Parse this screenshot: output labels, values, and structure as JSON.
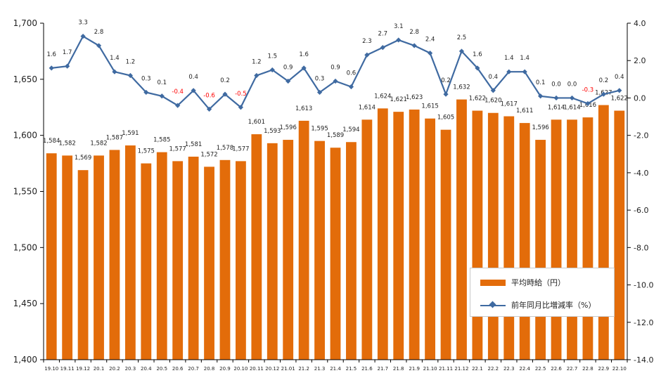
{
  "colors": {
    "bar": "#e36c0a",
    "line": "#3f6aa1",
    "negative_label": "#ff0000",
    "grid": "#000000"
  },
  "chart_data": {
    "type": "bar",
    "categories": [
      "19.10",
      "19.11",
      "19.12",
      "20.1",
      "20.2",
      "20.3",
      "20.4",
      "20.5",
      "20.6",
      "20.7",
      "20.8",
      "20.9",
      "20.10",
      "20.11",
      "20.12",
      "21.01",
      "21.2",
      "21.3",
      "21.4",
      "21.5",
      "21.6",
      "21.7",
      "21.8",
      "21.9",
      "21.10",
      "21.11",
      "21.12",
      "22.1",
      "22.2",
      "22.3",
      "22.4",
      "22.5",
      "22.6",
      "22.7",
      "22.8",
      "22.9",
      "22.10"
    ],
    "series": [
      {
        "name": "平均時給（円）",
        "type": "bar",
        "axis": "left",
        "values": [
          1584,
          1582,
          1569,
          1582,
          1587,
          1591,
          1575,
          1585,
          1577,
          1581,
          1572,
          1578,
          1577,
          1601,
          1593,
          1596,
          1613,
          1595,
          1589,
          1594,
          1614,
          1624,
          1621,
          1623,
          1615,
          1605,
          1632,
          1622,
          1620,
          1617,
          1611,
          1596,
          1614,
          1614,
          1616,
          1627,
          1622
        ],
        "labels": [
          "1,584",
          "1,582",
          "1,569",
          "1,582",
          "1,587",
          "1,591",
          "1,575",
          "1,585",
          "1,577",
          "1,581",
          "1,572",
          "1,578",
          "1,577",
          "1,601",
          "1,593",
          "1,596",
          "1,613",
          "1,595",
          "1,589",
          "1,594",
          "1,614",
          "1,624",
          "1,621",
          "1,623",
          "1,615",
          "1,605",
          "1,632",
          "1,622",
          "1,620",
          "1,617",
          "1,611",
          "1,596",
          "1,614",
          "1,614",
          "1,616",
          "1,627",
          "1,622"
        ]
      },
      {
        "name": "前年同月比増減率（%）",
        "type": "line",
        "axis": "right",
        "values": [
          1.6,
          1.7,
          3.3,
          2.8,
          1.4,
          1.2,
          0.3,
          0.1,
          -0.4,
          0.4,
          -0.6,
          0.2,
          -0.5,
          1.2,
          1.5,
          0.9,
          1.6,
          0.3,
          0.9,
          0.6,
          2.3,
          2.7,
          3.1,
          2.8,
          2.4,
          0.2,
          2.5,
          1.6,
          0.4,
          1.4,
          1.4,
          0.1,
          0.0,
          0.0,
          -0.3,
          0.2,
          0.4
        ],
        "labels": [
          "1.6",
          "1.7",
          "3.3",
          "2.8",
          "1.4",
          "1.2",
          "0.3",
          "0.1",
          "-0.4",
          "0.4",
          "-0.6",
          "0.2",
          "-0.5",
          "1.2",
          "1.5",
          "0.9",
          "1.6",
          "0.3",
          "0.9",
          "0.6",
          "2.3",
          "2.7",
          "3.1",
          "2.8",
          "2.4",
          "0.2",
          "2.5",
          "1.6",
          "0.4",
          "1.4",
          "1.4",
          "0.1",
          "0.0",
          "0.0",
          "-0.3",
          "0.2",
          "0.4"
        ]
      }
    ],
    "y_left": {
      "min": 1400,
      "max": 1700,
      "step": 50,
      "tick_labels": [
        "1,400",
        "1,450",
        "1,500",
        "1,550",
        "1,600",
        "1,650",
        "1,700"
      ]
    },
    "y_right": {
      "min": -14.0,
      "max": 4.0,
      "step": 2.0,
      "tick_labels": [
        "-14.0",
        "-12.0",
        "-10.0",
        "-8.0",
        "-6.0",
        "-4.0",
        "-2.0",
        "0.0",
        "2.0",
        "4.0"
      ]
    },
    "grid": false,
    "legend_position": "bottom-right"
  },
  "legend": {
    "bar_label": "平均時給（円）",
    "line_label": "前年同月比増減率（%）"
  }
}
